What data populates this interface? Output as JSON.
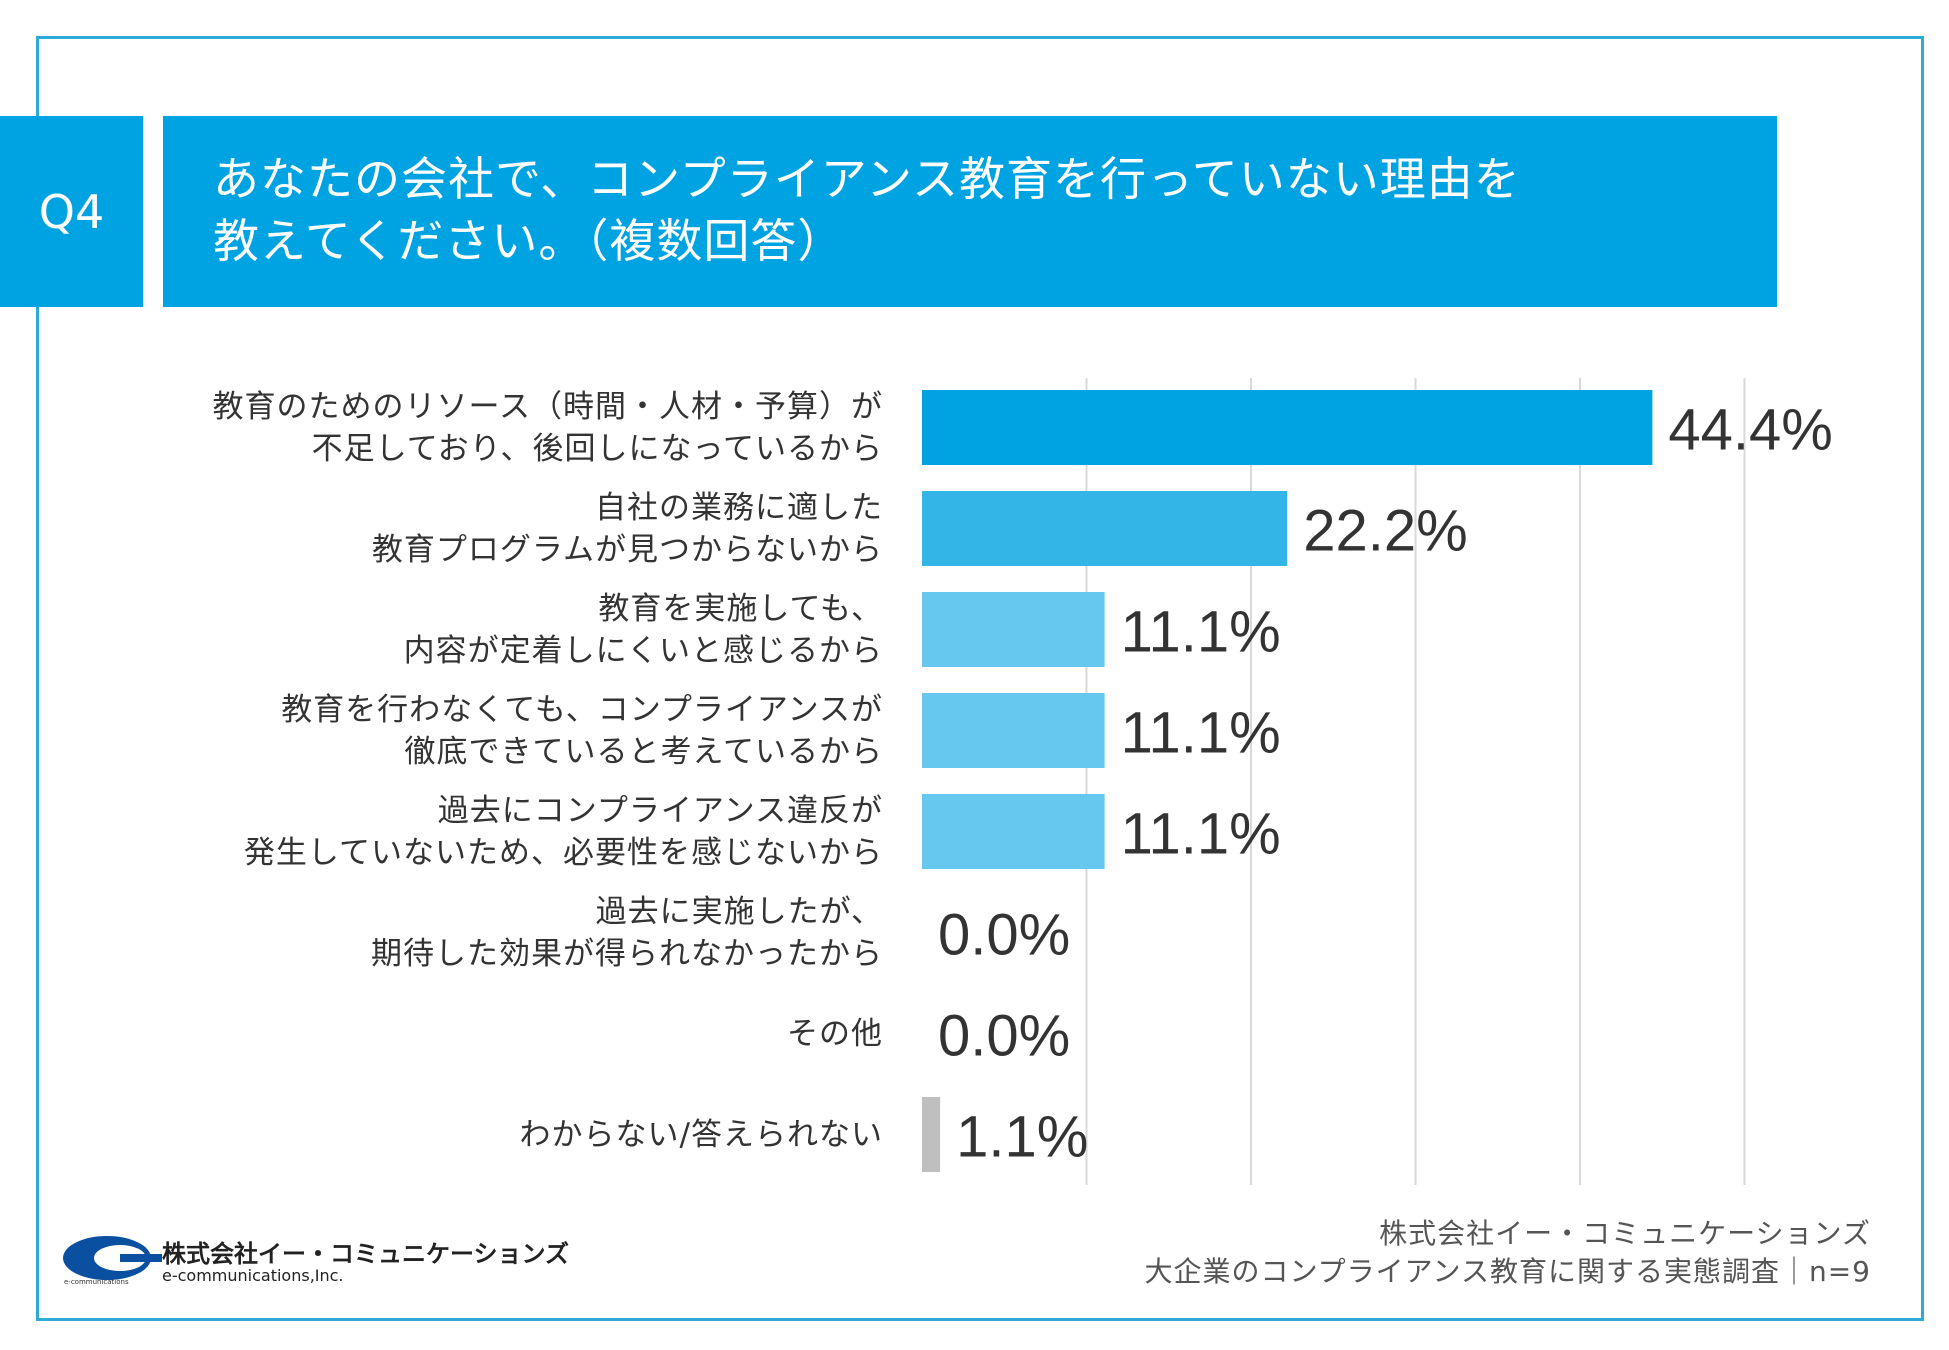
{
  "question": {
    "badge": "Q4",
    "line1": "あなたの会社で、コンプライアンス教育を行っていない理由を",
    "line2": "教えてください。（複数回答）"
  },
  "chart_data": {
    "type": "bar",
    "orientation": "horizontal",
    "categories": [
      [
        "教育のためのリソース（時間・人材・予算）が",
        "不足しており、後回しになっているから"
      ],
      [
        "自社の業務に適した",
        "教育プログラムが見つからないから"
      ],
      [
        "教育を実施しても、",
        "内容が定着しにくいと感じるから"
      ],
      [
        "教育を行わなくても、コンプライアンスが",
        "徹底できていると考えているから"
      ],
      [
        "過去にコンプライアンス違反が",
        "発生していないため、必要性を感じないから"
      ],
      [
        "過去に実施したが、",
        "期待した効果が得られなかったから"
      ],
      [
        "その他"
      ],
      [
        "わからない/答えられない"
      ]
    ],
    "values": [
      44.4,
      22.2,
      11.1,
      11.1,
      11.1,
      0.0,
      0.0,
      1.1
    ],
    "value_labels": [
      "44.4%",
      "22.2%",
      "11.1%",
      "11.1%",
      "11.1%",
      "0.0%",
      "0.0%",
      "1.1%"
    ],
    "bar_colors": [
      "#00a3e1",
      "#33b5e8",
      "#66c8ef",
      "#66c8ef",
      "#66c8ef",
      "#66c8ef",
      "#66c8ef",
      "#bfbfbf"
    ],
    "xlim": [
      0,
      50
    ],
    "gridlines": [
      10,
      20,
      30,
      40,
      50
    ],
    "grid": true,
    "unit": "%"
  },
  "logo": {
    "name": "株式会社イー・コミュニケーションズ",
    "sub": "e-communications,Inc.",
    "tiny": "e-communications"
  },
  "source": {
    "line1": "株式会社イー・コミュニケーションズ",
    "line2": "大企業のコンプライアンス教育に関する実態調査｜n=9"
  },
  "colors": {
    "accent": "#00a3e1",
    "frame": "#2eaad6"
  }
}
